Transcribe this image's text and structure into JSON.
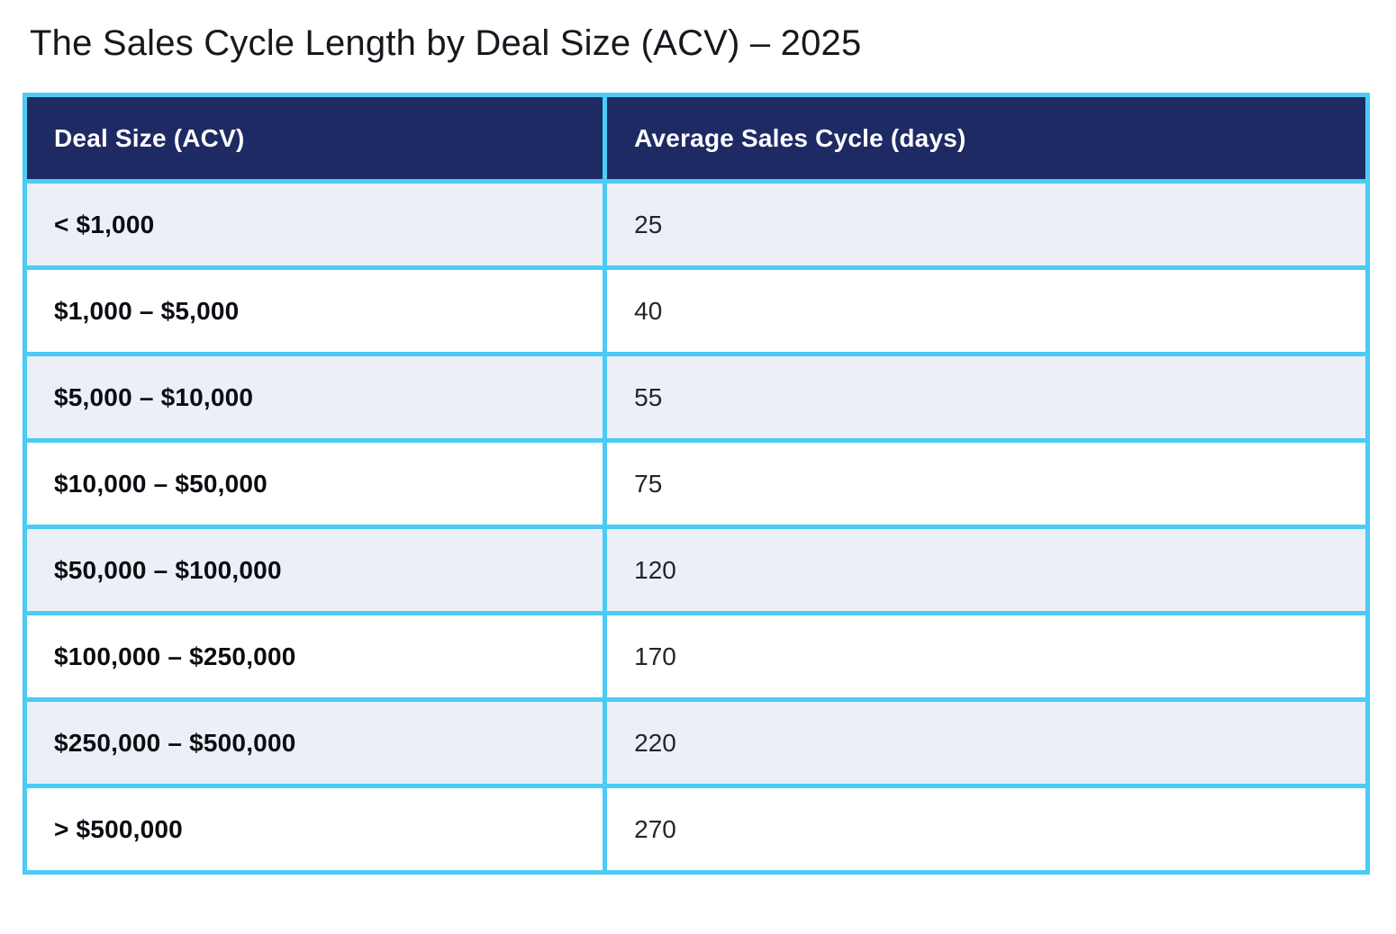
{
  "page": {
    "title": "The Sales Cycle Length by Deal Size (ACV) – 2025"
  },
  "colors": {
    "header_bg": "#1e2a64",
    "header_text": "#ffffff",
    "table_border": "#4bcbf5",
    "row_alt_bg": "#edeff7",
    "row_bg": "#ffffff",
    "label_text": "#0b0d12",
    "value_text": "#23252a"
  },
  "table": {
    "columns": [
      {
        "label": "Deal Size (ACV)"
      },
      {
        "label": "Average Sales Cycle (days)"
      }
    ],
    "rows": [
      {
        "deal_size": "< $1,000",
        "avg_days": "25"
      },
      {
        "deal_size": "$1,000 – $5,000",
        "avg_days": "40"
      },
      {
        "deal_size": "$5,000 – $10,000",
        "avg_days": "55"
      },
      {
        "deal_size": "$10,000 – $50,000",
        "avg_days": "75"
      },
      {
        "deal_size": "$50,000 – $100,000",
        "avg_days": "120"
      },
      {
        "deal_size": "$100,000 – $250,000",
        "avg_days": "170"
      },
      {
        "deal_size": "$250,000 – $500,000",
        "avg_days": "220"
      },
      {
        "deal_size": "> $500,000",
        "avg_days": "270"
      }
    ]
  },
  "chart_data": {
    "type": "table",
    "title": "The Sales Cycle Length by Deal Size (ACV) – 2025",
    "columns": [
      "Deal Size (ACV)",
      "Average Sales Cycle (days)"
    ],
    "rows": [
      [
        "< $1,000",
        25
      ],
      [
        "$1,000 – $5,000",
        40
      ],
      [
        "$5,000 – $10,000",
        55
      ],
      [
        "$10,000 – $50,000",
        75
      ],
      [
        "$50,000 – $100,000",
        120
      ],
      [
        "$100,000 – $250,000",
        170
      ],
      [
        "$250,000 – $500,000",
        220
      ],
      [
        "> $500,000",
        270
      ]
    ]
  }
}
